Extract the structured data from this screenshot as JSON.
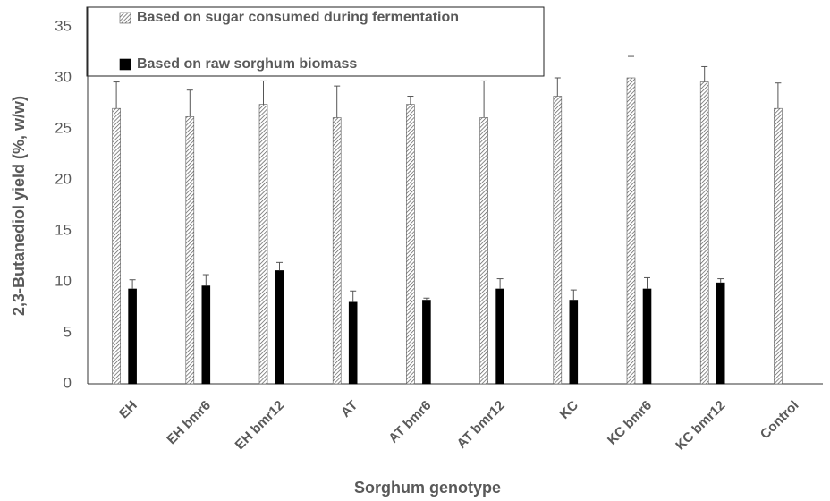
{
  "chart_data": {
    "type": "bar",
    "y_label": "2,3-Butanediol yield (%, w/w)",
    "x_label": "Sorghum genotype",
    "categories": [
      "EH",
      "EH bmr6",
      "EH bmr12",
      "AT",
      "AT bmr6",
      "AT bmr12",
      "KC",
      "KC bmr6",
      "KC bmr12",
      "Control"
    ],
    "series": [
      {
        "name": "Based on sugar consumed during fermentation",
        "color": "#595959",
        "pattern": "hatch",
        "values": [
          27.0,
          26.2,
          27.4,
          26.1,
          27.4,
          26.1,
          28.2,
          30.0,
          29.6,
          27.0
        ],
        "errors": [
          2.6,
          2.6,
          2.3,
          3.1,
          0.8,
          3.6,
          1.8,
          2.1,
          1.5,
          2.5
        ]
      },
      {
        "name": "Based on raw sorghum biomass",
        "color": "#000000",
        "values": [
          9.3,
          9.6,
          11.1,
          8.0,
          8.2,
          9.3,
          8.2,
          9.3,
          9.9,
          null
        ],
        "errors": [
          0.9,
          1.1,
          0.8,
          1.1,
          0.2,
          1.0,
          1.0,
          1.1,
          0.4,
          null
        ]
      }
    ],
    "ylim": [
      0,
      35
    ],
    "yticks": [
      0,
      5,
      10,
      15,
      20,
      25,
      30,
      35
    ],
    "grid": false
  }
}
